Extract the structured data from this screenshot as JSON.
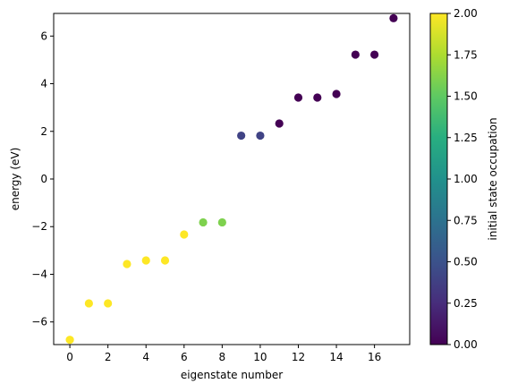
{
  "chart_data": {
    "type": "scatter",
    "title": "",
    "xlabel": "eigenstate number",
    "ylabel": "energy (eV)",
    "xlim": [
      -0.85,
      17.85
    ],
    "ylim": [
      -6.95,
      6.95
    ],
    "xticks": [
      0,
      2,
      4,
      6,
      8,
      10,
      12,
      14,
      16
    ],
    "yticks": [
      -6,
      -4,
      -2,
      0,
      2,
      4,
      6
    ],
    "grid": false,
    "points": {
      "x": [
        0,
        1,
        2,
        3,
        4,
        5,
        6,
        7,
        8,
        9,
        10,
        11,
        12,
        13,
        14,
        15,
        16,
        17
      ],
      "y": [
        -6.75,
        -5.22,
        -5.22,
        -3.57,
        -3.42,
        -3.42,
        -2.33,
        -1.82,
        -1.82,
        1.82,
        1.82,
        2.33,
        3.42,
        3.42,
        3.57,
        5.22,
        5.22,
        6.75
      ],
      "c": [
        2,
        2,
        2,
        2,
        2,
        2,
        2,
        1.6,
        1.6,
        0.4,
        0.4,
        0,
        0,
        0,
        0,
        0,
        0,
        0
      ]
    },
    "colorbar": {
      "label": "initial state occupation",
      "colormap": "viridis",
      "range": [
        0,
        2
      ],
      "ticks": [
        "0.00",
        "0.25",
        "0.50",
        "0.75",
        "1.00",
        "1.25",
        "1.50",
        "1.75",
        "2.00"
      ]
    }
  }
}
